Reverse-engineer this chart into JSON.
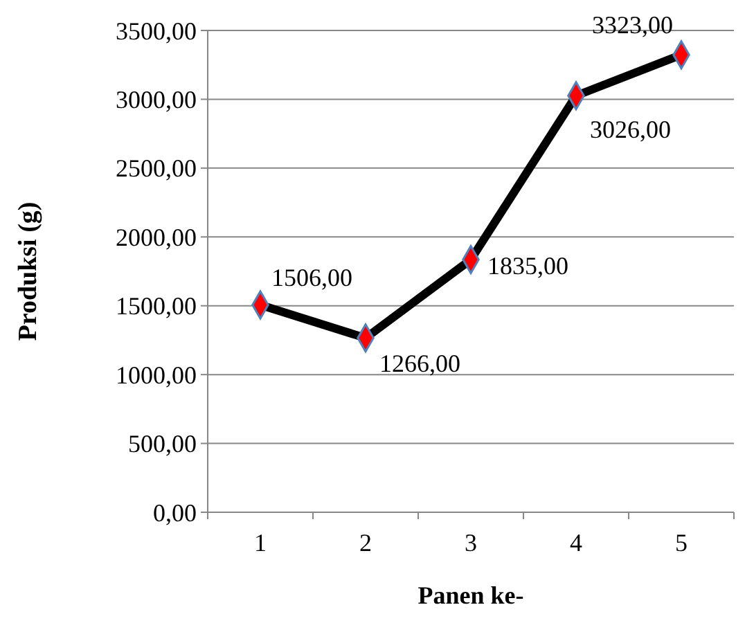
{
  "chart_data": {
    "type": "line",
    "xlabel": "Panen ke-",
    "ylabel": "Produksi (g)",
    "categories": [
      "1",
      "2",
      "3",
      "4",
      "5"
    ],
    "series": [
      {
        "color": "#000000",
        "values": [
          1506,
          1266,
          1835,
          3026,
          3323
        ],
        "value_labels": [
          "1506,00",
          "1266,00",
          "1835,00",
          "3026,00",
          "3323,00"
        ]
      }
    ],
    "ylim": [
      0,
      3500
    ],
    "yticks": [
      {
        "value": 0,
        "label": "0,00"
      },
      {
        "value": 500,
        "label": "500,00"
      },
      {
        "value": 1000,
        "label": "1000,00"
      },
      {
        "value": 1500,
        "label": "1500,00"
      },
      {
        "value": 2000,
        "label": "2000,00"
      },
      {
        "value": 2500,
        "label": "2500,00"
      },
      {
        "value": 3000,
        "label": "3000,00"
      },
      {
        "value": 3500,
        "label": "3500,00"
      }
    ],
    "grid": "y",
    "marker": "diamond",
    "line_style": "solid"
  }
}
